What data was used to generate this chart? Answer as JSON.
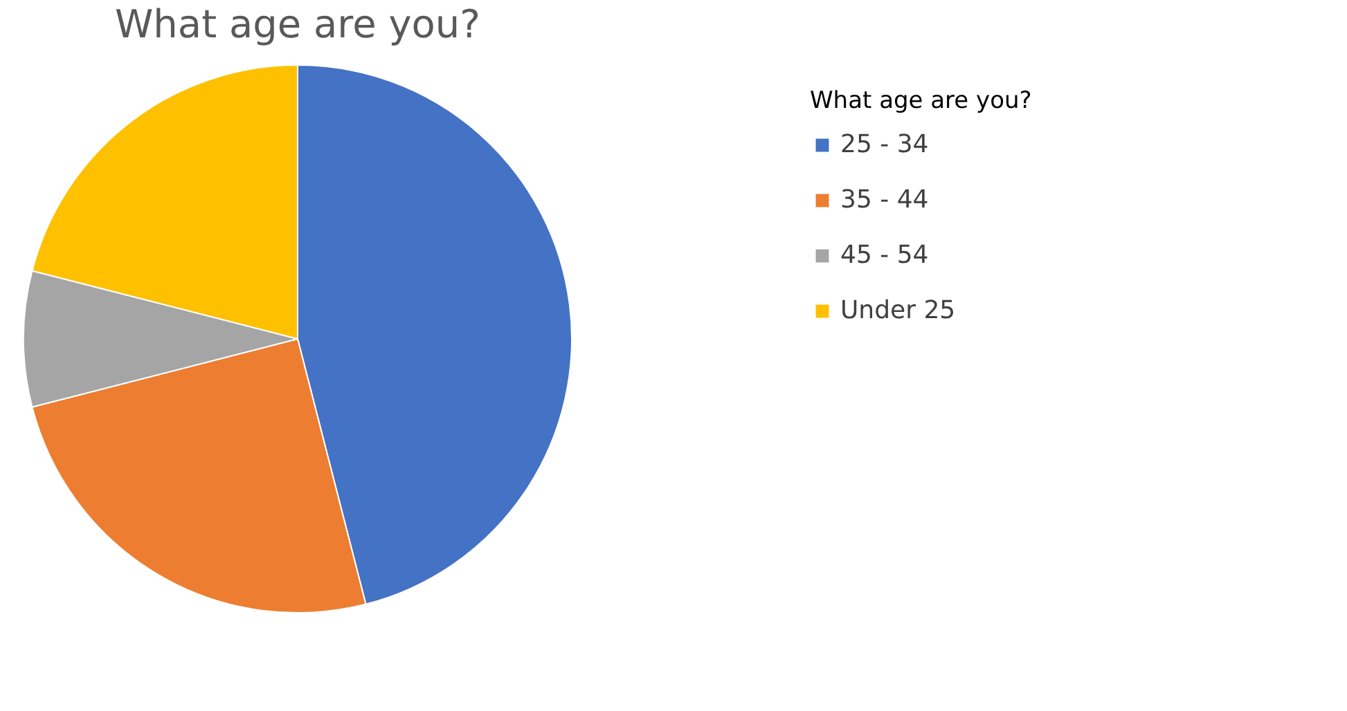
{
  "chart_data": {
    "type": "pie",
    "title": "What age are you?",
    "legend_title": "What age are you?",
    "categories": [
      "25 - 34",
      "35 - 44",
      "45 - 54",
      "Under 25"
    ],
    "values": [
      46,
      25,
      8,
      21
    ],
    "colors": [
      "#4472c4",
      "#ed7d31",
      "#a5a5a5",
      "#ffc000"
    ],
    "legend": "right"
  }
}
